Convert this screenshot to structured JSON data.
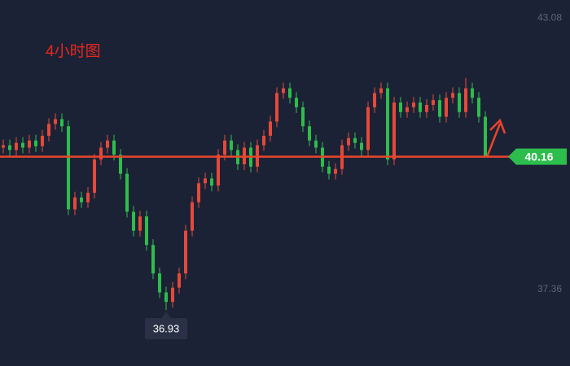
{
  "chart_data": {
    "type": "candlestick",
    "title": "4小时图",
    "open": [
      40.35,
      40.4,
      40.3,
      40.45,
      40.35,
      40.5,
      40.38,
      40.6,
      40.85,
      40.95,
      40.8,
      39.05,
      39.3,
      39.2,
      39.4,
      40.1,
      40.35,
      40.5,
      40.2,
      39.8,
      39.0,
      38.6,
      38.9,
      38.3,
      37.7,
      37.3,
      37.1,
      37.4,
      37.7,
      38.6,
      39.2,
      39.6,
      39.7,
      39.55,
      40.2,
      40.5,
      40.3,
      40.0,
      40.35,
      39.95,
      40.4,
      40.6,
      40.9,
      41.5,
      41.6,
      41.4,
      41.2,
      40.8,
      40.5,
      40.35,
      39.95,
      39.8,
      39.9,
      40.4,
      40.55,
      40.45,
      40.3,
      41.2,
      41.5,
      41.6,
      40.1,
      41.3,
      41.1,
      41.2,
      41.3,
      41.1,
      41.25,
      41.35,
      41.0,
      41.4,
      41.5,
      41.1,
      41.6,
      41.4,
      41.0
    ],
    "high": [
      40.52,
      40.52,
      40.57,
      40.57,
      40.62,
      40.62,
      40.72,
      40.97,
      41.07,
      41.07,
      40.92,
      39.42,
      39.42,
      39.52,
      40.22,
      40.47,
      40.62,
      40.62,
      40.32,
      39.92,
      39.12,
      39.02,
      39.02,
      38.42,
      37.82,
      37.42,
      37.52,
      37.82,
      38.72,
      39.32,
      39.72,
      39.82,
      39.82,
      40.32,
      40.62,
      40.62,
      40.42,
      40.47,
      40.47,
      40.52,
      40.72,
      41.02,
      41.62,
      41.72,
      41.72,
      41.52,
      41.32,
      40.92,
      40.62,
      40.47,
      40.07,
      40.02,
      40.52,
      40.67,
      40.67,
      40.57,
      41.32,
      41.62,
      41.72,
      41.72,
      41.42,
      41.42,
      41.32,
      41.42,
      41.42,
      41.37,
      41.47,
      41.47,
      41.52,
      41.62,
      41.62,
      41.82,
      41.72,
      41.52,
      41.12
    ],
    "low": [
      40.23,
      40.18,
      40.18,
      40.23,
      40.23,
      40.26,
      40.26,
      40.48,
      40.73,
      40.68,
      38.93,
      38.93,
      39.08,
      39.08,
      39.28,
      39.98,
      40.23,
      40.08,
      39.68,
      38.88,
      38.48,
      38.48,
      38.18,
      37.58,
      37.18,
      36.93,
      36.98,
      37.28,
      37.58,
      38.48,
      39.08,
      39.48,
      39.43,
      39.43,
      40.08,
      40.18,
      39.88,
      39.88,
      39.83,
      39.83,
      40.28,
      40.48,
      40.78,
      41.38,
      41.28,
      41.08,
      40.68,
      40.38,
      40.23,
      39.83,
      39.68,
      39.68,
      39.78,
      40.28,
      40.33,
      40.18,
      40.18,
      41.08,
      41.38,
      39.98,
      39.98,
      40.98,
      40.98,
      41.08,
      40.98,
      40.98,
      41.13,
      40.88,
      40.88,
      41.28,
      40.98,
      40.98,
      41.28,
      40.88,
      40.16
    ],
    "close": [
      40.4,
      40.3,
      40.45,
      40.35,
      40.5,
      40.38,
      40.6,
      40.85,
      40.95,
      40.8,
      39.05,
      39.3,
      39.2,
      39.4,
      40.1,
      40.35,
      40.5,
      40.2,
      39.8,
      39.0,
      38.6,
      38.9,
      38.3,
      37.7,
      37.3,
      37.1,
      37.4,
      37.7,
      38.6,
      39.2,
      39.6,
      39.7,
      39.55,
      40.2,
      40.5,
      40.3,
      40.0,
      40.35,
      39.95,
      40.4,
      40.6,
      40.9,
      41.5,
      41.6,
      41.4,
      41.2,
      40.8,
      40.5,
      40.35,
      39.95,
      39.8,
      39.9,
      40.4,
      40.55,
      40.45,
      40.3,
      41.2,
      41.5,
      41.6,
      40.1,
      41.3,
      41.1,
      41.2,
      41.3,
      41.1,
      41.25,
      41.35,
      41.0,
      41.4,
      41.5,
      41.1,
      41.6,
      41.4,
      41.0,
      40.16
    ],
    "up_color": "#e5493a",
    "down_color": "#2dbd4c",
    "line_color": "#e8452c",
    "current_price": 40.16,
    "low_label": 36.93,
    "ylim": [
      35.75,
      43.46
    ],
    "yticks": [
      37.36,
      43.08
    ]
  }
}
